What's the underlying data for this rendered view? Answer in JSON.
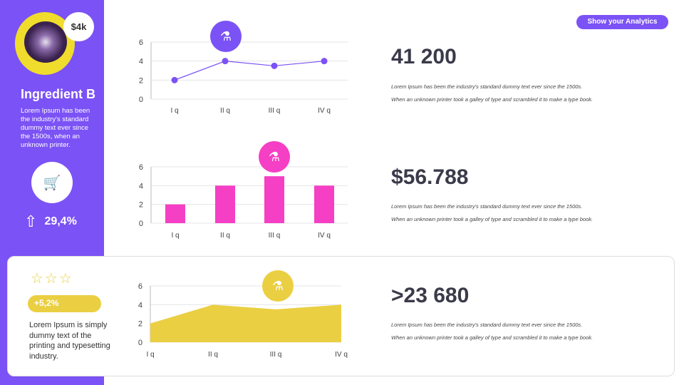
{
  "sidebar": {
    "price": "$4k",
    "title": "Ingredient B",
    "description": "Lorem Ipsum has been the industry's standard dummy text ever since the 1500s, when an unknown printer.",
    "cart_icon": "shopping-cart-icon",
    "growth": "29,4%",
    "growth_icon": "arrow-up-icon"
  },
  "card": {
    "stars": 3,
    "change": "+5,2%",
    "description": "Lorem Ipsum is simply dummy text of the printing and typesetting industry."
  },
  "header": {
    "button": "Show your Analytics"
  },
  "stats": [
    {
      "value": "41 200",
      "line1": "Lorem Ipsum has been the industry's standard dummy text ever since the 1500s.",
      "line2": "When an unknown printer took a galley of type and scrambled it to make a type book."
    },
    {
      "value": "$56.788",
      "line1": "Lorem Ipsum has been the industry's standard dummy text ever since the 1500s.",
      "line2": "When an unknown printer took a galley of type and scrambled it to make a type book."
    },
    {
      "value": ">23 680",
      "line1": "Lorem Ipsum has been the industry's standard dummy text ever since the 1500s.",
      "line2": "When an unknown printer took a galley of type and scrambled it to make a type book."
    }
  ],
  "colors": {
    "purple": "#7b52f5",
    "pink": "#f53fc4",
    "yellow": "#ebcf42"
  },
  "chart_data": [
    {
      "type": "line",
      "categories": [
        "I q",
        "II q",
        "III q",
        "IV q"
      ],
      "values": [
        2,
        4,
        3.5,
        4
      ],
      "ylim": [
        0,
        6
      ],
      "yticks": [
        0,
        2,
        4,
        6
      ],
      "grid": true,
      "color": "#7b52f5",
      "icon": "flask-icon"
    },
    {
      "type": "bar",
      "categories": [
        "I q",
        "II q",
        "III q",
        "IV q"
      ],
      "values": [
        2,
        4,
        5,
        4
      ],
      "ylim": [
        0,
        6
      ],
      "yticks": [
        0,
        2,
        4,
        6
      ],
      "grid": true,
      "color": "#f53fc4",
      "icon": "flask-icon"
    },
    {
      "type": "area",
      "categories": [
        "I q",
        "II q",
        "III q",
        "IV q"
      ],
      "values": [
        2,
        4,
        3.5,
        4
      ],
      "ylim": [
        0,
        6
      ],
      "yticks": [
        0,
        2,
        4,
        6
      ],
      "grid": true,
      "color": "#ebcf42",
      "icon": "flask-icon"
    }
  ]
}
